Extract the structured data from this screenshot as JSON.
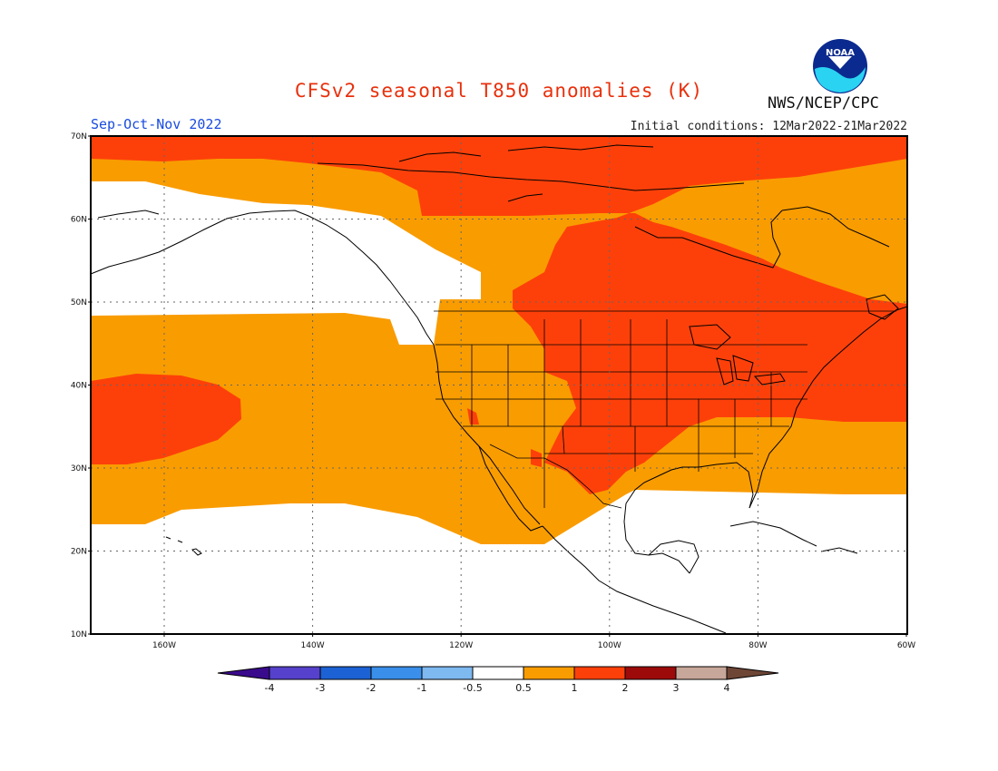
{
  "title": "CFSv2 seasonal T850 anomalies (K)",
  "season": "Sep-Oct-Nov 2022",
  "initial_conditions": "Initial conditions: 12Mar2022-21Mar2022",
  "agency": "NWS/NCEP/CPC",
  "logo_text": "NOAA",
  "map": {
    "lat_labels": [
      "10N",
      "20N",
      "30N",
      "40N",
      "50N",
      "60N",
      "70N"
    ],
    "lon_labels": [
      "160W",
      "140W",
      "120W",
      "100W",
      "80W",
      "60W"
    ],
    "category_colors": {
      "0": "#ffffff",
      "1": "#f99c00",
      "2": "#fd400a"
    }
  },
  "colorbar": {
    "tick_labels": [
      "-4",
      "-3",
      "-2",
      "-1",
      "-0.5",
      "0.5",
      "1",
      "2",
      "3",
      "4"
    ],
    "colors": [
      "#3a0a8c",
      "#5541cc",
      "#1c62d4",
      "#3a8fea",
      "#7eb9f0",
      "#ffffff",
      "#f99c00",
      "#fd400a",
      "#9c0a0a",
      "#c7a79a",
      "#6e4636"
    ]
  }
}
